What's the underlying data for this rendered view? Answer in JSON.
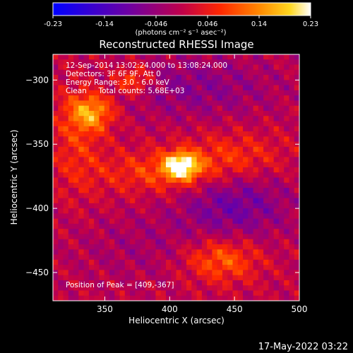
{
  "chart_data": {
    "type": "heatmap",
    "title": "Reconstructed RHESSI Image",
    "xlabel": "Heliocentric X (arcsec)",
    "ylabel": "Heliocentric Y (arcsec)",
    "xlim": [
      310,
      500
    ],
    "ylim": [
      -472,
      -280
    ],
    "x_ticks": [
      350,
      400,
      450,
      500
    ],
    "y_ticks": [
      -300,
      -350,
      -400,
      -450
    ],
    "colorbar": {
      "range": [
        -0.23,
        0.23
      ],
      "tick_labels": [
        "-0.23",
        "-0.14",
        "-0.046",
        "0.046",
        "0.14",
        "0.23"
      ],
      "unit_label": "(photons cm⁻² s⁻¹ asec⁻²)"
    },
    "annotations": [
      "12-Sep-2014 13:02:24.000 to 13:08:24.000",
      "Detectors: 3F 6F 9F, Att 0",
      "Energy Range: 3.0 - 6.0 keV",
      "Clean     Total counts: 5.68E+03"
    ],
    "peak_label": "Position of Peak = [409,-367]",
    "peak": [
      409,
      -367
    ],
    "features": [
      {
        "x": 409,
        "y": -367,
        "sx": 9,
        "sy": 7,
        "amp": 0.23
      },
      {
        "x": 395,
        "y": -372,
        "sx": 35,
        "sy": 12,
        "amp": 0.08
      },
      {
        "x": 340,
        "y": -325,
        "sx": 12,
        "sy": 10,
        "amp": 0.14
      },
      {
        "x": 372,
        "y": -300,
        "sx": 10,
        "sy": 8,
        "amp": 0.11
      },
      {
        "x": 440,
        "y": -440,
        "sx": 20,
        "sy": 12,
        "amp": 0.11
      },
      {
        "x": 328,
        "y": -345,
        "sx": 14,
        "sy": 30,
        "amp": 0.06
      },
      {
        "x": 450,
        "y": -360,
        "sx": 28,
        "sy": 14,
        "amp": 0.07
      },
      {
        "x": 450,
        "y": -395,
        "sx": 30,
        "sy": 20,
        "amp": -0.09
      },
      {
        "x": 420,
        "y": -305,
        "sx": 45,
        "sy": 18,
        "amp": -0.06
      },
      {
        "x": 380,
        "y": -430,
        "sx": 40,
        "sy": 20,
        "amp": -0.03
      }
    ],
    "timestamp": "17-May-2022 03:22"
  }
}
